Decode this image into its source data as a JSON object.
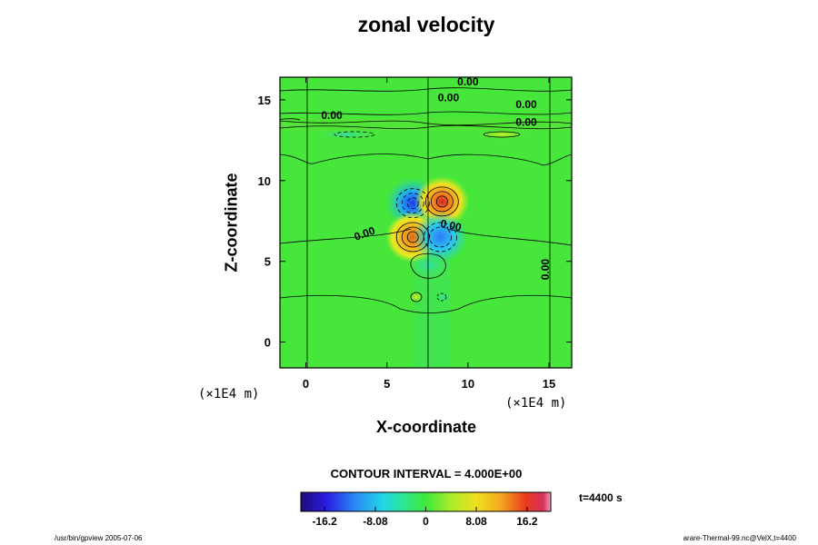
{
  "chart_data": {
    "type": "heatmap",
    "title": "zonal velocity",
    "xlabel": "X-coordinate",
    "ylabel": "Z-coordinate",
    "x_unit_label": "(×1E4 m)",
    "z_unit_label": "(×1E4 m)",
    "xlim": [
      -1.6,
      16.4
    ],
    "ylim": [
      -1.6,
      16.4
    ],
    "x_ticks": [
      0,
      5,
      10,
      15
    ],
    "y_ticks": [
      0,
      5,
      10,
      15
    ],
    "x_tick_labels": [
      "0",
      "5",
      "10",
      "15"
    ],
    "y_tick_labels": [
      "0",
      "5",
      "10",
      "15"
    ],
    "contour_interval_text": "CONTOUR INTERVAL = 4.000E+00",
    "contour_labels": [
      {
        "text": "0.00",
        "x": 10.0,
        "y": 15.9
      },
      {
        "text": "0.00",
        "x": 8.8,
        "y": 14.9
      },
      {
        "text": "0.00",
        "x": 13.6,
        "y": 14.5
      },
      {
        "text": "0.00",
        "x": 1.6,
        "y": 13.8
      },
      {
        "text": "0.00",
        "x": 13.6,
        "y": 13.4
      },
      {
        "text": "0.00",
        "x": 8.9,
        "y": 7.0
      },
      {
        "text": "0.00",
        "x": 3.7,
        "y": 6.5
      },
      {
        "text": "0.00",
        "x": 15.0,
        "y": 4.5
      }
    ],
    "extrema": [
      {
        "sign": "negative",
        "x": 6.6,
        "z": 8.6,
        "value": -18
      },
      {
        "sign": "positive",
        "x": 8.4,
        "z": 8.7,
        "value": 20
      },
      {
        "sign": "positive",
        "x": 6.6,
        "z": 6.5,
        "value": 16
      },
      {
        "sign": "negative",
        "x": 8.3,
        "z": 6.5,
        "value": -12
      }
    ],
    "colorbar": {
      "range": [
        -20,
        20
      ],
      "tick_values": [
        -16.2,
        -8.08,
        0,
        8.08,
        16.2
      ],
      "tick_labels": [
        "-16.2",
        "-8.08",
        "0",
        "8.08",
        "16.2"
      ]
    },
    "time_label": "t=4400 s"
  },
  "footer": {
    "left": "/usr/bin/gpview 2005-07-06",
    "right": "arare-Thermal-99.nc@VelX,t=4400"
  }
}
